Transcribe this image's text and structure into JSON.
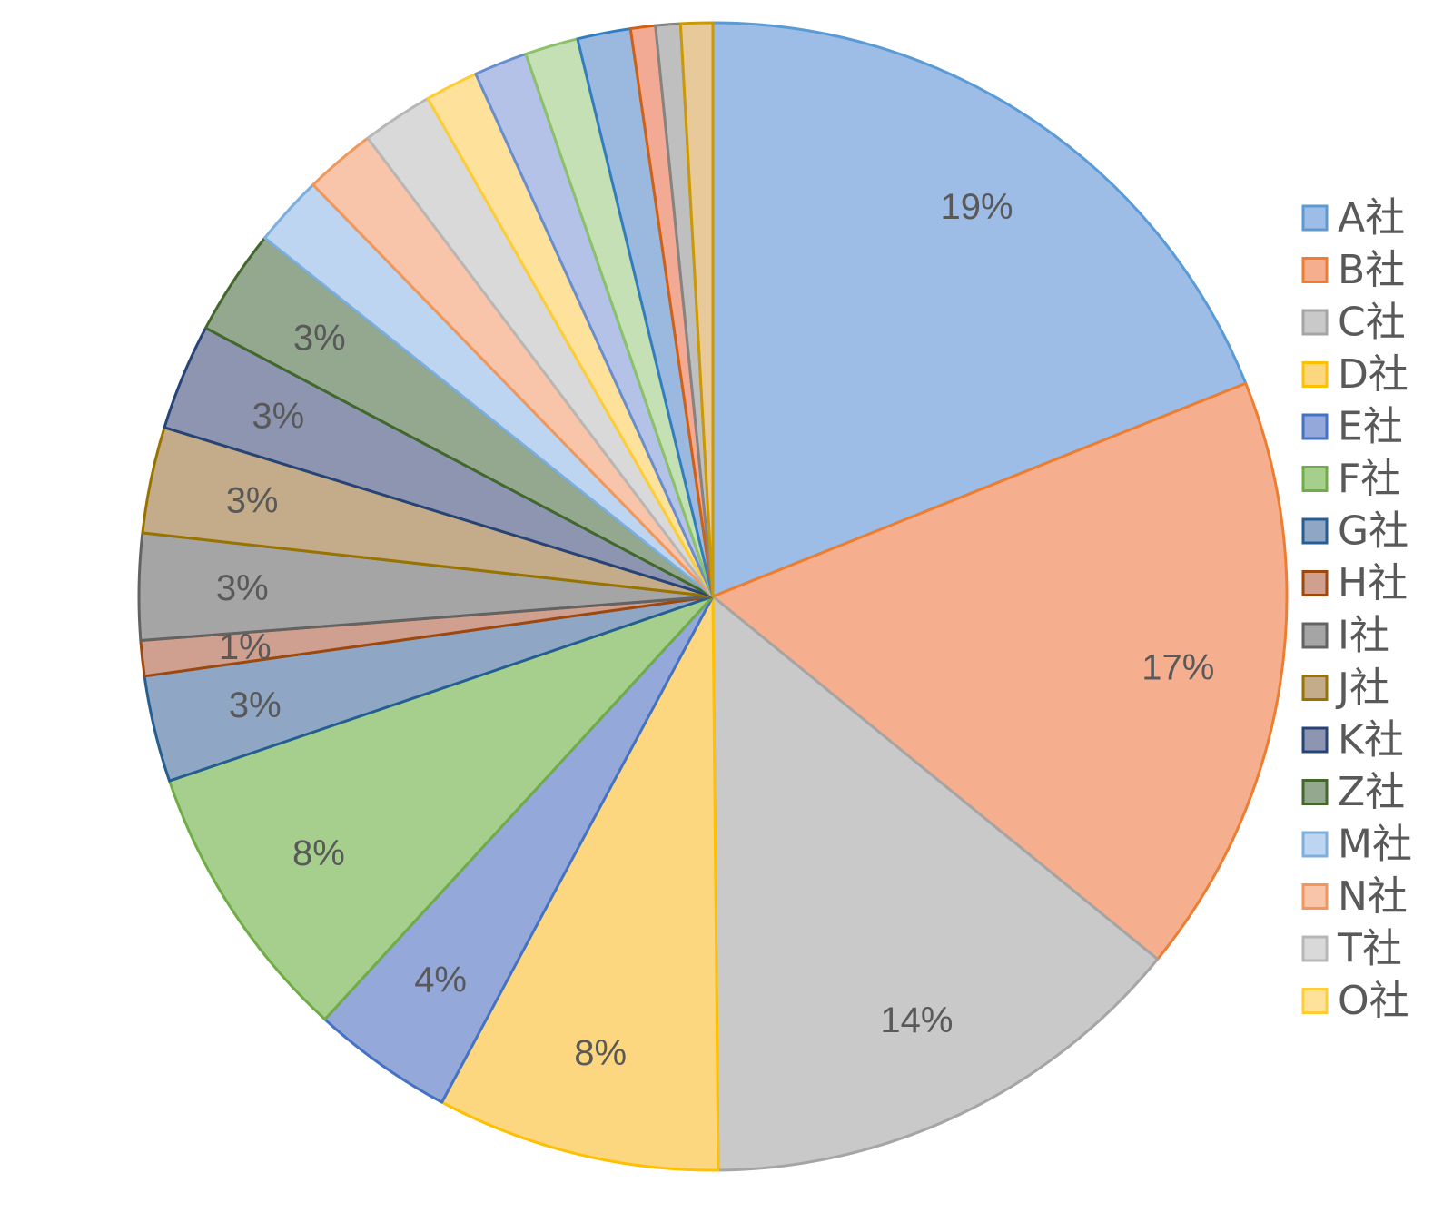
{
  "chart_data": {
    "type": "pie",
    "title": "",
    "start_angle_deg": 0,
    "direction": "clockwise",
    "legend_position": "right",
    "slices": [
      {
        "name": "A社",
        "value": 19,
        "label": "19%",
        "fill": "#9dbde6",
        "stroke": "#5b9bd5"
      },
      {
        "name": "B社",
        "value": 17,
        "label": "17%",
        "fill": "#f5ae8e",
        "stroke": "#ed7d31"
      },
      {
        "name": "C社",
        "value": 14,
        "label": "14%",
        "fill": "#c9c9c9",
        "stroke": "#a5a5a5"
      },
      {
        "name": "D社",
        "value": 8,
        "label": "8%",
        "fill": "#fdd680",
        "stroke": "#ffc000"
      },
      {
        "name": "E社",
        "value": 4,
        "label": "4%",
        "fill": "#94a8da",
        "stroke": "#4472c4"
      },
      {
        "name": "F社",
        "value": 8,
        "label": "8%",
        "fill": "#a6cf8e",
        "stroke": "#70ad47"
      },
      {
        "name": "G社",
        "value": 3,
        "label": "3%",
        "fill": "#8fa6c4",
        "stroke": "#255e91"
      },
      {
        "name": "H社",
        "value": 1,
        "label": "1%",
        "fill": "#cfa090",
        "stroke": "#9e480e"
      },
      {
        "name": "I社",
        "value": 3,
        "label": "3%",
        "fill": "#a5a5a5",
        "stroke": "#636363"
      },
      {
        "name": "J社",
        "value": 3,
        "label": "3%",
        "fill": "#c4ac8a",
        "stroke": "#997300"
      },
      {
        "name": "K社",
        "value": 3,
        "label": "3%",
        "fill": "#8e95b0",
        "stroke": "#264478"
      },
      {
        "name": "Z社",
        "value": 3,
        "label": "3%",
        "fill": "#94a890",
        "stroke": "#43682b"
      },
      {
        "name": "M社",
        "value": 2,
        "label": "",
        "fill": "#bdd5f0",
        "stroke": "#7cafdd"
      },
      {
        "name": "N社",
        "value": 2,
        "label": "",
        "fill": "#f8c5ab",
        "stroke": "#f1975a"
      },
      {
        "name": "T社",
        "value": 2,
        "label": "",
        "fill": "#d9d9d9",
        "stroke": "#b7b7b7"
      },
      {
        "name": "O社",
        "value": 1.5,
        "label": "",
        "fill": "#fee29c",
        "stroke": "#ffcd33"
      },
      {
        "name": "",
        "value": 1.5,
        "label": "",
        "fill": "#b3c2e6",
        "stroke": "#698ed0"
      },
      {
        "name": "",
        "value": 1.5,
        "label": "",
        "fill": "#c4e0b4",
        "stroke": "#8cc168"
      },
      {
        "name": "",
        "value": 1.5,
        "label": "",
        "fill": "#9bb8df",
        "stroke": "#327dc2"
      },
      {
        "name": "",
        "value": 0.7,
        "label": "",
        "fill": "#f2aa94",
        "stroke": "#d26012"
      },
      {
        "name": "",
        "value": 0.7,
        "label": "",
        "fill": "#bfbfbf",
        "stroke": "#848484"
      },
      {
        "name": "",
        "value": 0.9,
        "label": "",
        "fill": "#e8c99a",
        "stroke": "#cc9a00"
      }
    ],
    "legend": [
      "A社",
      "B社",
      "C社",
      "D社",
      "E社",
      "F社",
      "G社",
      "H社",
      "I社",
      "J社",
      "K社",
      "Z社",
      "M社",
      "N社",
      "T社",
      "O社"
    ]
  }
}
